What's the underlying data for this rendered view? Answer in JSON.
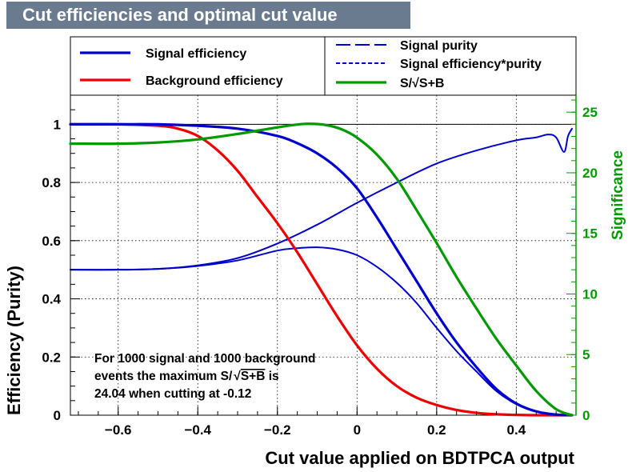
{
  "chart_data": {
    "type": "line",
    "title": "Cut efficiencies and optimal cut value",
    "xlabel": "Cut value applied on BDTPCA output",
    "ylabel": "Efficiency (Purity)",
    "y2label": "Significance",
    "xlim": [
      -0.72,
      0.55
    ],
    "ylim": [
      0,
      1.1
    ],
    "y2lim": [
      0,
      26.4
    ],
    "x_ticks": [
      -0.6,
      -0.4,
      -0.2,
      0,
      0.2,
      0.4
    ],
    "x_tick_labels": [
      "−0.6",
      "−0.4",
      "−0.2",
      "0",
      "0.2",
      "0.4"
    ],
    "y_ticks": [
      0,
      0.2,
      0.4,
      0.6,
      0.8,
      1
    ],
    "y_tick_labels": [
      "0",
      "0.2",
      "0.4",
      "0.6",
      "0.8",
      "1"
    ],
    "y2_ticks": [
      0,
      5,
      10,
      15,
      20,
      25
    ],
    "y2_tick_labels": [
      "0",
      "5",
      "10",
      "15",
      "20",
      "25"
    ],
    "grid": true,
    "legend_position": "top",
    "annotation": {
      "line1": "For 1000 signal and 1000 background",
      "line2_prefix": "events the maximum S/",
      "line2_radicand": "S+B",
      "line2_suffix": " is",
      "line3": "24.04 when cutting at -0.12"
    },
    "series": [
      {
        "name": "Signal efficiency",
        "color": "#0000cc",
        "style": "solid-thick",
        "axis": "left",
        "x": [
          -0.72,
          -0.6,
          -0.5,
          -0.4,
          -0.3,
          -0.2,
          -0.15,
          -0.1,
          -0.05,
          0,
          0.05,
          0.1,
          0.15,
          0.2,
          0.25,
          0.3,
          0.35,
          0.4,
          0.45,
          0.5,
          0.54
        ],
        "values": [
          1,
          1,
          1,
          0.995,
          0.985,
          0.96,
          0.935,
          0.9,
          0.85,
          0.78,
          0.68,
          0.57,
          0.46,
          0.35,
          0.25,
          0.165,
          0.09,
          0.04,
          0.013,
          0.002,
          0
        ]
      },
      {
        "name": "Background efficiency",
        "color": "#ee0000",
        "style": "solid-thick",
        "axis": "left",
        "x": [
          -0.72,
          -0.6,
          -0.5,
          -0.45,
          -0.4,
          -0.35,
          -0.3,
          -0.25,
          -0.2,
          -0.15,
          -0.1,
          -0.05,
          0,
          0.05,
          0.1,
          0.15,
          0.2,
          0.25,
          0.3,
          0.35,
          0.4,
          0.45,
          0.5,
          0.54
        ],
        "values": [
          1,
          1,
          0.995,
          0.985,
          0.96,
          0.91,
          0.84,
          0.75,
          0.66,
          0.56,
          0.45,
          0.34,
          0.24,
          0.16,
          0.1,
          0.06,
          0.035,
          0.018,
          0.008,
          0.003,
          0.001,
          0,
          0,
          0
        ]
      },
      {
        "name": "Signal purity",
        "color": "#0000cc",
        "style": "long-dash",
        "axis": "left",
        "x": [
          -0.72,
          -0.6,
          -0.5,
          -0.4,
          -0.3,
          -0.2,
          -0.1,
          0,
          0.1,
          0.2,
          0.3,
          0.4,
          0.45,
          0.48,
          0.5,
          0.52,
          0.53,
          0.54
        ],
        "values": [
          0.5,
          0.5,
          0.503,
          0.515,
          0.54,
          0.59,
          0.655,
          0.73,
          0.8,
          0.865,
          0.91,
          0.945,
          0.955,
          0.965,
          0.955,
          0.905,
          0.96,
          0.985
        ]
      },
      {
        "name": "Signal efficiency*purity",
        "color": "#0000cc",
        "style": "short-dash",
        "axis": "left",
        "x": [
          -0.72,
          -0.6,
          -0.5,
          -0.4,
          -0.3,
          -0.2,
          -0.15,
          -0.1,
          -0.05,
          0,
          0.05,
          0.1,
          0.15,
          0.2,
          0.25,
          0.3,
          0.35,
          0.4,
          0.45,
          0.5,
          0.54
        ],
        "values": [
          0.5,
          0.5,
          0.503,
          0.513,
          0.532,
          0.566,
          0.574,
          0.577,
          0.57,
          0.55,
          0.51,
          0.455,
          0.385,
          0.3,
          0.22,
          0.15,
          0.083,
          0.038,
          0.012,
          0.002,
          0
        ]
      },
      {
        "name": "S/√S+B",
        "color": "#009900",
        "style": "solid-thick",
        "axis": "right",
        "x": [
          -0.72,
          -0.6,
          -0.5,
          -0.4,
          -0.3,
          -0.2,
          -0.15,
          -0.12,
          -0.08,
          -0.04,
          0,
          0.05,
          0.1,
          0.15,
          0.2,
          0.25,
          0.3,
          0.35,
          0.4,
          0.45,
          0.5,
          0.54
        ],
        "values": [
          22.4,
          22.4,
          22.5,
          22.75,
          23.2,
          23.75,
          23.98,
          24.04,
          23.95,
          23.6,
          22.9,
          21.5,
          19.5,
          16.9,
          14.2,
          11.4,
          8.8,
          6.3,
          4.1,
          2.0,
          0.5,
          0
        ]
      }
    ]
  }
}
